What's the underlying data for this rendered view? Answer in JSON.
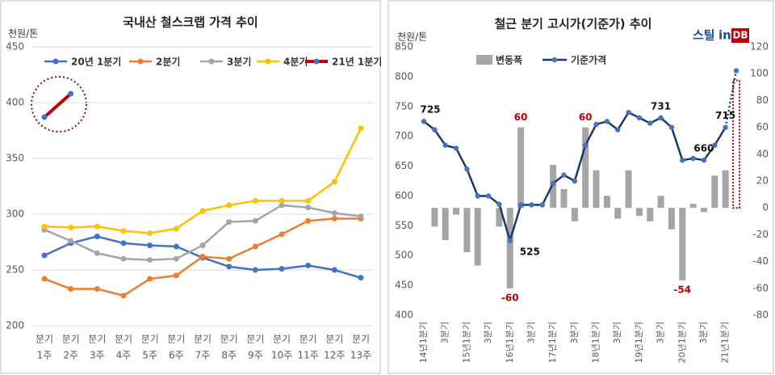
{
  "chart_data": [
    {
      "type": "line",
      "title": "국내산 철스크랩 가격 추이",
      "y_label": "천원/톤",
      "categories": [
        [
          "분기",
          "1주"
        ],
        [
          "분기",
          "2주"
        ],
        [
          "분기",
          "3주"
        ],
        [
          "분기",
          "4주"
        ],
        [
          "분기",
          "5주"
        ],
        [
          "분기",
          "6주"
        ],
        [
          "분기",
          "7주"
        ],
        [
          "분기",
          "8주"
        ],
        [
          "분기",
          "9주"
        ],
        [
          "분기",
          "10주"
        ],
        [
          "분기",
          "11주"
        ],
        [
          "분기",
          "12주"
        ],
        [
          "분기",
          "13주"
        ]
      ],
      "series": [
        {
          "name": "20년 1분기",
          "color": "#4472c4",
          "values": [
            263,
            274,
            280,
            274,
            272,
            271,
            261,
            253,
            250,
            251,
            254,
            250,
            243
          ]
        },
        {
          "name": "2분기",
          "color": "#ed7d31",
          "values": [
            242,
            233,
            233,
            227,
            242,
            245,
            262,
            260,
            271,
            282,
            294,
            296,
            296
          ]
        },
        {
          "name": "3분기",
          "color": "#a5a5a5",
          "values": [
            286,
            276,
            265,
            260,
            259,
            260,
            272,
            293,
            294,
            308,
            306,
            301,
            298
          ]
        },
        {
          "name": "4분기",
          "color": "#ffc000",
          "values": [
            289,
            288,
            289,
            285,
            283,
            287,
            303,
            308,
            312,
            312,
            312,
            329,
            377
          ]
        },
        {
          "name": "21년 1분기",
          "color": "#c00000",
          "marker_color": "#4472c4",
          "values": [
            387,
            408,
            null,
            null,
            null,
            null,
            null,
            null,
            null,
            null,
            null,
            null,
            null
          ]
        }
      ],
      "ylim": [
        200,
        450
      ],
      "yticks": [
        200,
        250,
        300,
        350,
        400,
        450
      ],
      "grid": true
    },
    {
      "type": "combo",
      "title": "철근 분기 고시가(기준가) 추이",
      "y_label": "천원/톤",
      "logo": [
        "스틸",
        "in",
        "DB"
      ],
      "categories": [
        "14년1분기",
        null,
        "3분기",
        null,
        "15년1분기",
        null,
        "3분기",
        null,
        "16년1분기",
        null,
        "3분기",
        null,
        "17년1분기",
        null,
        "3분기",
        null,
        "18년1분기",
        null,
        "3분기",
        null,
        "19년1분기",
        null,
        "3분기",
        null,
        "20년1분기",
        null,
        "3분기",
        null,
        "21년1분기",
        null
      ],
      "series": [
        {
          "name": "변동폭",
          "color": "#a5a5a5",
          "axis": "y2",
          "dashed_last": true,
          "dashed_color": "#c00000",
          "values": [
            null,
            -14,
            -24,
            -5,
            -33,
            -43,
            0,
            -14,
            -60,
            60,
            0,
            0,
            32,
            14,
            -10,
            60,
            28,
            9,
            -8,
            28,
            -6,
            -10,
            9,
            -16,
            -54,
            3,
            -3,
            24,
            28,
            95
          ],
          "value_labels": [
            null,
            null,
            null,
            null,
            null,
            null,
            null,
            null,
            "-60",
            "60",
            null,
            null,
            null,
            null,
            null,
            "60",
            null,
            null,
            null,
            null,
            null,
            null,
            null,
            null,
            "-54",
            null,
            null,
            null,
            null,
            null
          ]
        },
        {
          "name": "기준가격",
          "color": "#1f3864",
          "marker_color": "#4472c4",
          "dashed_last": true,
          "values": [
            725,
            711,
            685,
            680,
            645,
            600,
            600,
            586,
            525,
            585,
            585,
            585,
            621,
            635,
            625,
            685,
            720,
            725,
            711,
            740,
            731,
            722,
            731,
            715,
            660,
            663,
            660,
            685,
            715,
            810
          ],
          "value_labels": [
            "725",
            null,
            null,
            null,
            null,
            null,
            null,
            null,
            "525",
            null,
            null,
            null,
            null,
            null,
            null,
            null,
            null,
            null,
            null,
            null,
            null,
            null,
            "731",
            null,
            null,
            null,
            "660",
            null,
            "715",
            null
          ]
        }
      ],
      "ylim": [
        400,
        850
      ],
      "yticks": [
        400,
        450,
        500,
        550,
        600,
        650,
        700,
        750,
        800,
        850
      ],
      "y2lim": [
        -80,
        120
      ],
      "y2ticks": [
        -80,
        -60,
        -40,
        -20,
        0,
        20,
        40,
        60,
        80,
        100,
        120
      ],
      "grid": false
    }
  ]
}
